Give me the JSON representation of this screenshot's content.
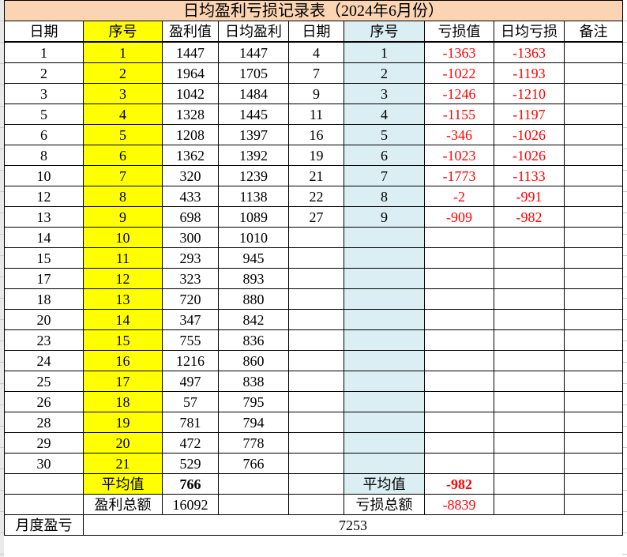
{
  "title": "日均盈利亏损记录表（2024年6月份）",
  "colors": {
    "title_bg": "#FBD4B4",
    "profit_seq_bg": "#FFFF00",
    "loss_seq_bg": "#DAEEF3",
    "loss_text": "#FF0000",
    "border": "#000000"
  },
  "columns": [
    "日期",
    "序号",
    "盈利值",
    "日均盈利",
    "日期",
    "序号",
    "亏损值",
    "日均亏损",
    "备注"
  ],
  "rows": [
    [
      "1",
      "1",
      "1447",
      "1447",
      "4",
      "1",
      "-1363",
      "-1363",
      ""
    ],
    [
      "2",
      "2",
      "1964",
      "1705",
      "7",
      "2",
      "-1022",
      "-1193",
      ""
    ],
    [
      "3",
      "3",
      "1042",
      "1484",
      "9",
      "3",
      "-1246",
      "-1210",
      ""
    ],
    [
      "5",
      "4",
      "1328",
      "1445",
      "11",
      "4",
      "-1155",
      "-1197",
      ""
    ],
    [
      "6",
      "5",
      "1208",
      "1397",
      "16",
      "5",
      "-346",
      "-1026",
      ""
    ],
    [
      "8",
      "6",
      "1362",
      "1392",
      "19",
      "6",
      "-1023",
      "-1026",
      ""
    ],
    [
      "10",
      "7",
      "320",
      "1239",
      "21",
      "7",
      "-1773",
      "-1133",
      ""
    ],
    [
      "12",
      "8",
      "433",
      "1138",
      "22",
      "8",
      "-2",
      "-991",
      ""
    ],
    [
      "13",
      "9",
      "698",
      "1089",
      "27",
      "9",
      "-909",
      "-982",
      ""
    ],
    [
      "14",
      "10",
      "300",
      "1010",
      "",
      "",
      "",
      "",
      ""
    ],
    [
      "15",
      "11",
      "293",
      "945",
      "",
      "",
      "",
      "",
      ""
    ],
    [
      "17",
      "12",
      "323",
      "893",
      "",
      "",
      "",
      "",
      ""
    ],
    [
      "18",
      "13",
      "720",
      "880",
      "",
      "",
      "",
      "",
      ""
    ],
    [
      "20",
      "14",
      "347",
      "842",
      "",
      "",
      "",
      "",
      ""
    ],
    [
      "23",
      "15",
      "755",
      "836",
      "",
      "",
      "",
      "",
      ""
    ],
    [
      "24",
      "16",
      "1216",
      "860",
      "",
      "",
      "",
      "",
      ""
    ],
    [
      "25",
      "17",
      "497",
      "838",
      "",
      "",
      "",
      "",
      ""
    ],
    [
      "26",
      "18",
      "57",
      "795",
      "",
      "",
      "",
      "",
      ""
    ],
    [
      "28",
      "19",
      "781",
      "794",
      "",
      "",
      "",
      "",
      ""
    ],
    [
      "29",
      "20",
      "472",
      "778",
      "",
      "",
      "",
      "",
      ""
    ],
    [
      "30",
      "21",
      "529",
      "766",
      "",
      "",
      "",
      "",
      ""
    ]
  ],
  "avg_row": [
    "",
    "平均值",
    "766",
    "",
    "",
    "平均值",
    "-982",
    "",
    ""
  ],
  "total_row": [
    "",
    "盈利总额",
    "16092",
    "",
    "",
    "亏损总额",
    "-8839",
    "",
    ""
  ],
  "summary": {
    "month_label": "月度盈亏",
    "month_value": "7253"
  }
}
